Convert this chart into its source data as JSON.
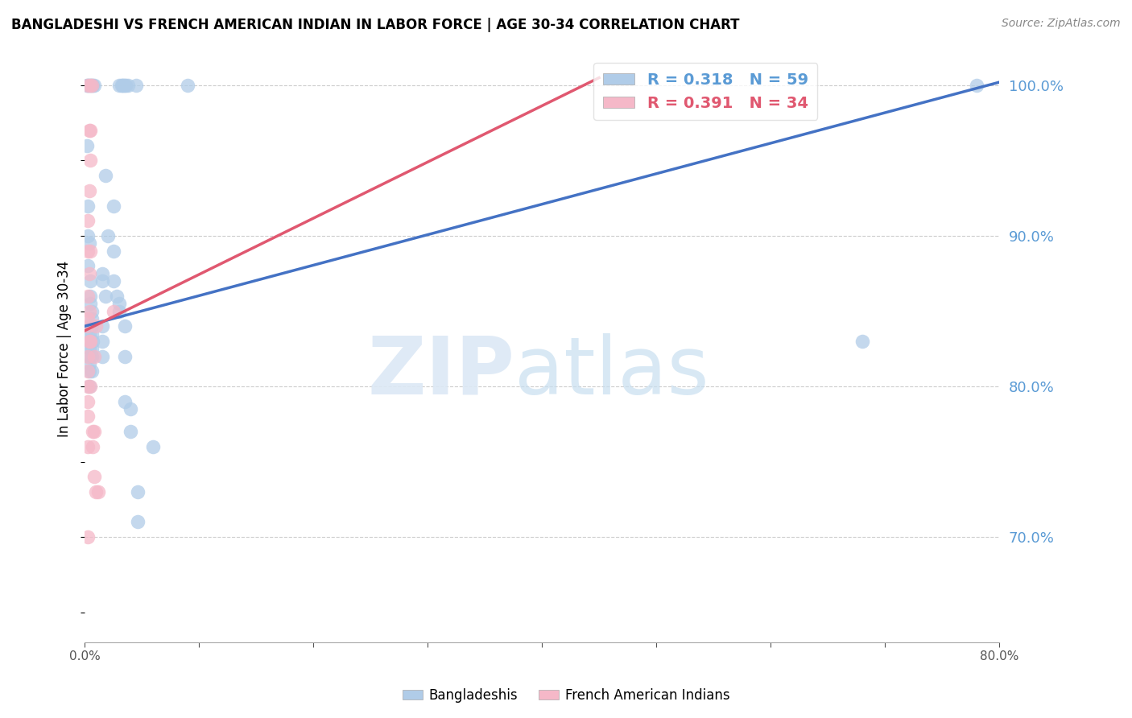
{
  "title": "BANGLADESHI VS FRENCH AMERICAN INDIAN IN LABOR FORCE | AGE 30-34 CORRELATION CHART",
  "source": "Source: ZipAtlas.com",
  "ylabel": "In Labor Force | Age 30-34",
  "xlim": [
    0.0,
    0.8
  ],
  "ylim": [
    0.63,
    1.02
  ],
  "xtick_labels": [
    "0.0%",
    "",
    "",
    "",
    "",
    "",
    "",
    "",
    "80.0%"
  ],
  "xtick_vals": [
    0.0,
    0.1,
    0.2,
    0.3,
    0.4,
    0.5,
    0.6,
    0.7,
    0.8
  ],
  "yticks_right": [
    0.7,
    0.8,
    0.9,
    1.0
  ],
  "watermark_zip": "ZIP",
  "watermark_atlas": "atlas",
  "blue_color": "#b0cce8",
  "pink_color": "#f5b8c8",
  "blue_line_color": "#4472c4",
  "pink_line_color": "#e05870",
  "blue_line": [
    0.0,
    0.8,
    0.84,
    1.002
  ],
  "pink_line": [
    0.0,
    0.45,
    0.837,
    1.005
  ],
  "blue_scatter": [
    [
      0.002,
      1.0
    ],
    [
      0.003,
      1.0
    ],
    [
      0.004,
      1.0
    ],
    [
      0.005,
      1.0
    ],
    [
      0.006,
      1.0
    ],
    [
      0.007,
      1.0
    ],
    [
      0.008,
      1.0
    ],
    [
      0.03,
      1.0
    ],
    [
      0.032,
      1.0
    ],
    [
      0.033,
      1.0
    ],
    [
      0.034,
      1.0
    ],
    [
      0.035,
      1.0
    ],
    [
      0.036,
      1.0
    ],
    [
      0.038,
      1.0
    ],
    [
      0.045,
      1.0
    ],
    [
      0.09,
      1.0
    ],
    [
      0.002,
      0.96
    ],
    [
      0.018,
      0.94
    ],
    [
      0.003,
      0.92
    ],
    [
      0.025,
      0.92
    ],
    [
      0.003,
      0.9
    ],
    [
      0.02,
      0.9
    ],
    [
      0.004,
      0.895
    ],
    [
      0.025,
      0.89
    ],
    [
      0.003,
      0.88
    ],
    [
      0.015,
      0.875
    ],
    [
      0.005,
      0.87
    ],
    [
      0.015,
      0.87
    ],
    [
      0.025,
      0.87
    ],
    [
      0.005,
      0.86
    ],
    [
      0.018,
      0.86
    ],
    [
      0.028,
      0.86
    ],
    [
      0.005,
      0.855
    ],
    [
      0.03,
      0.855
    ],
    [
      0.006,
      0.85
    ],
    [
      0.03,
      0.85
    ],
    [
      0.006,
      0.845
    ],
    [
      0.004,
      0.84
    ],
    [
      0.006,
      0.84
    ],
    [
      0.015,
      0.84
    ],
    [
      0.035,
      0.84
    ],
    [
      0.004,
      0.835
    ],
    [
      0.006,
      0.835
    ],
    [
      0.004,
      0.83
    ],
    [
      0.007,
      0.83
    ],
    [
      0.015,
      0.83
    ],
    [
      0.004,
      0.825
    ],
    [
      0.006,
      0.825
    ],
    [
      0.004,
      0.82
    ],
    [
      0.006,
      0.82
    ],
    [
      0.015,
      0.82
    ],
    [
      0.035,
      0.82
    ],
    [
      0.004,
      0.815
    ],
    [
      0.004,
      0.81
    ],
    [
      0.006,
      0.81
    ],
    [
      0.004,
      0.8
    ],
    [
      0.035,
      0.79
    ],
    [
      0.04,
      0.785
    ],
    [
      0.04,
      0.77
    ],
    [
      0.06,
      0.76
    ],
    [
      0.046,
      0.73
    ],
    [
      0.046,
      0.71
    ],
    [
      0.68,
      0.83
    ],
    [
      0.78,
      1.0
    ]
  ],
  "pink_scatter": [
    [
      0.003,
      1.0
    ],
    [
      0.005,
      1.0
    ],
    [
      0.006,
      1.0
    ],
    [
      0.004,
      0.97
    ],
    [
      0.005,
      0.97
    ],
    [
      0.005,
      0.95
    ],
    [
      0.004,
      0.93
    ],
    [
      0.003,
      0.91
    ],
    [
      0.003,
      0.89
    ],
    [
      0.005,
      0.89
    ],
    [
      0.004,
      0.875
    ],
    [
      0.003,
      0.86
    ],
    [
      0.004,
      0.85
    ],
    [
      0.025,
      0.85
    ],
    [
      0.003,
      0.845
    ],
    [
      0.003,
      0.84
    ],
    [
      0.01,
      0.84
    ],
    [
      0.004,
      0.83
    ],
    [
      0.005,
      0.83
    ],
    [
      0.003,
      0.82
    ],
    [
      0.008,
      0.82
    ],
    [
      0.003,
      0.81
    ],
    [
      0.003,
      0.8
    ],
    [
      0.005,
      0.8
    ],
    [
      0.003,
      0.79
    ],
    [
      0.003,
      0.78
    ],
    [
      0.007,
      0.77
    ],
    [
      0.008,
      0.77
    ],
    [
      0.003,
      0.76
    ],
    [
      0.007,
      0.76
    ],
    [
      0.008,
      0.74
    ],
    [
      0.01,
      0.73
    ],
    [
      0.012,
      0.73
    ],
    [
      0.003,
      0.7
    ]
  ]
}
